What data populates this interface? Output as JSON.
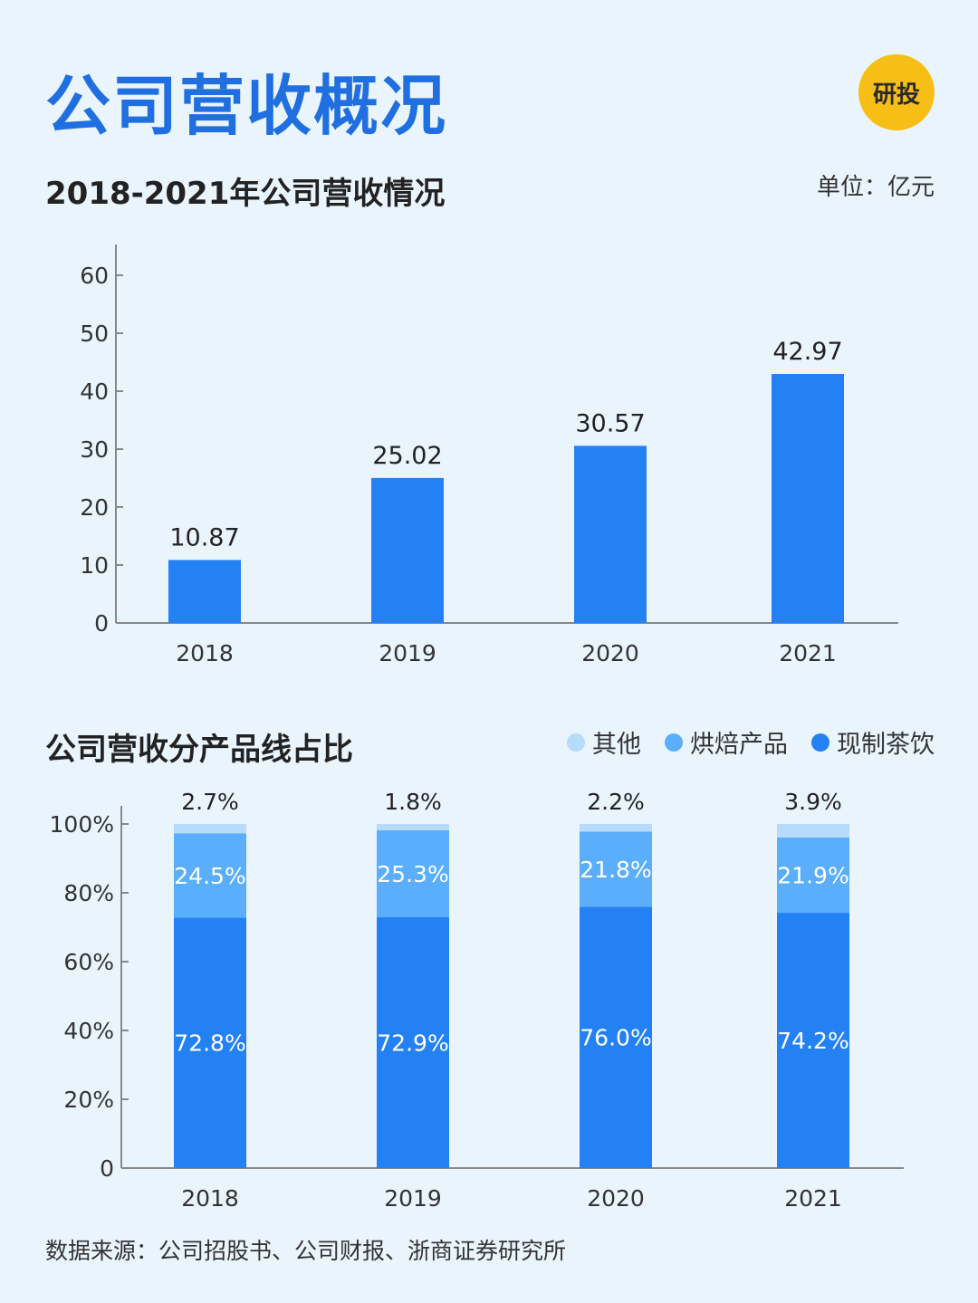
{
  "header": {
    "title": "公司营收概况",
    "badge": "研投"
  },
  "section1": {
    "title": "2018-2021年公司营收情况",
    "unit": "单位：亿元"
  },
  "section2": {
    "title": "公司营收分产品线占比"
  },
  "footer": {
    "source": "数据来源：公司招股书、公司财报、浙商证券研究所"
  },
  "colors": {
    "bar": "#2481f3",
    "tea": "#2481f3",
    "bakery": "#5aaefc",
    "other": "#b6dbfb",
    "axis": "#888888"
  },
  "chart_data": [
    {
      "type": "bar",
      "title": "2018-2021年公司营收情况",
      "categories": [
        "2018",
        "2019",
        "2020",
        "2021"
      ],
      "values": [
        10.87,
        25.02,
        30.57,
        42.97
      ],
      "value_labels": [
        "10.87",
        "25.02",
        "30.57",
        "42.97"
      ],
      "yticks": [
        "0",
        "10",
        "20",
        "30",
        "40",
        "50",
        "60"
      ],
      "ylim": [
        0,
        60
      ],
      "grid": false,
      "xlabel": "",
      "ylabel": ""
    },
    {
      "type": "bar",
      "stacked": true,
      "title": "公司营收分产品线占比",
      "categories": [
        "2018",
        "2019",
        "2020",
        "2021"
      ],
      "series": [
        {
          "name": "现制茶饮",
          "values": [
            72.8,
            72.9,
            76.0,
            74.2
          ],
          "labels": [
            "72.8%",
            "72.9%",
            "76.0%",
            "74.2%"
          ]
        },
        {
          "name": "烘焙产品",
          "values": [
            24.5,
            25.3,
            21.8,
            21.9
          ],
          "labels": [
            "24.5%",
            "25.3%",
            "21.8%",
            "21.9%"
          ]
        },
        {
          "name": "其他",
          "values": [
            2.7,
            1.8,
            2.2,
            3.9
          ],
          "labels": [
            "2.7%",
            "1.8%",
            "2.2%",
            "3.9%"
          ]
        }
      ],
      "legend": [
        "其他",
        "烘焙产品",
        "现制茶饮"
      ],
      "legend_position": "top-right",
      "yticks": [
        "0",
        "20%",
        "40%",
        "60%",
        "80%",
        "100%"
      ],
      "ylim": [
        0,
        100
      ],
      "grid": false,
      "xlabel": "",
      "ylabel": ""
    }
  ]
}
